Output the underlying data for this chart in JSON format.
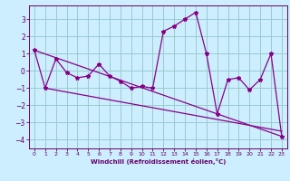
{
  "xlabel": "Windchill (Refroidissement éolien,°C)",
  "ylabel": "",
  "bg_color": "#cceeff",
  "line_color": "#880088",
  "grid_color": "#99cccc",
  "xlim": [
    -0.5,
    23.5
  ],
  "ylim": [
    -4.5,
    3.8
  ],
  "xticks": [
    0,
    1,
    2,
    3,
    4,
    5,
    6,
    7,
    8,
    9,
    10,
    11,
    12,
    13,
    14,
    15,
    16,
    17,
    18,
    19,
    20,
    21,
    22,
    23
  ],
  "yticks": [
    -4,
    -3,
    -2,
    -1,
    0,
    1,
    2,
    3
  ],
  "series1_x": [
    0,
    1,
    2,
    3,
    4,
    5,
    6,
    7,
    8,
    9,
    10,
    11,
    12,
    13,
    14,
    15,
    16,
    17,
    18,
    19,
    20,
    21,
    22,
    23
  ],
  "series1_y": [
    1.2,
    -1.0,
    0.7,
    -0.1,
    -0.4,
    -0.3,
    0.4,
    -0.3,
    -0.6,
    -1.0,
    -0.9,
    -1.0,
    2.3,
    2.6,
    3.0,
    3.4,
    1.0,
    -2.5,
    -0.5,
    -0.4,
    -1.1,
    -0.5,
    1.0,
    -3.8
  ],
  "series2_x": [
    0,
    23
  ],
  "series2_y": [
    1.2,
    -3.8
  ],
  "series3_x": [
    1,
    23
  ],
  "series3_y": [
    -1.0,
    -3.5
  ]
}
